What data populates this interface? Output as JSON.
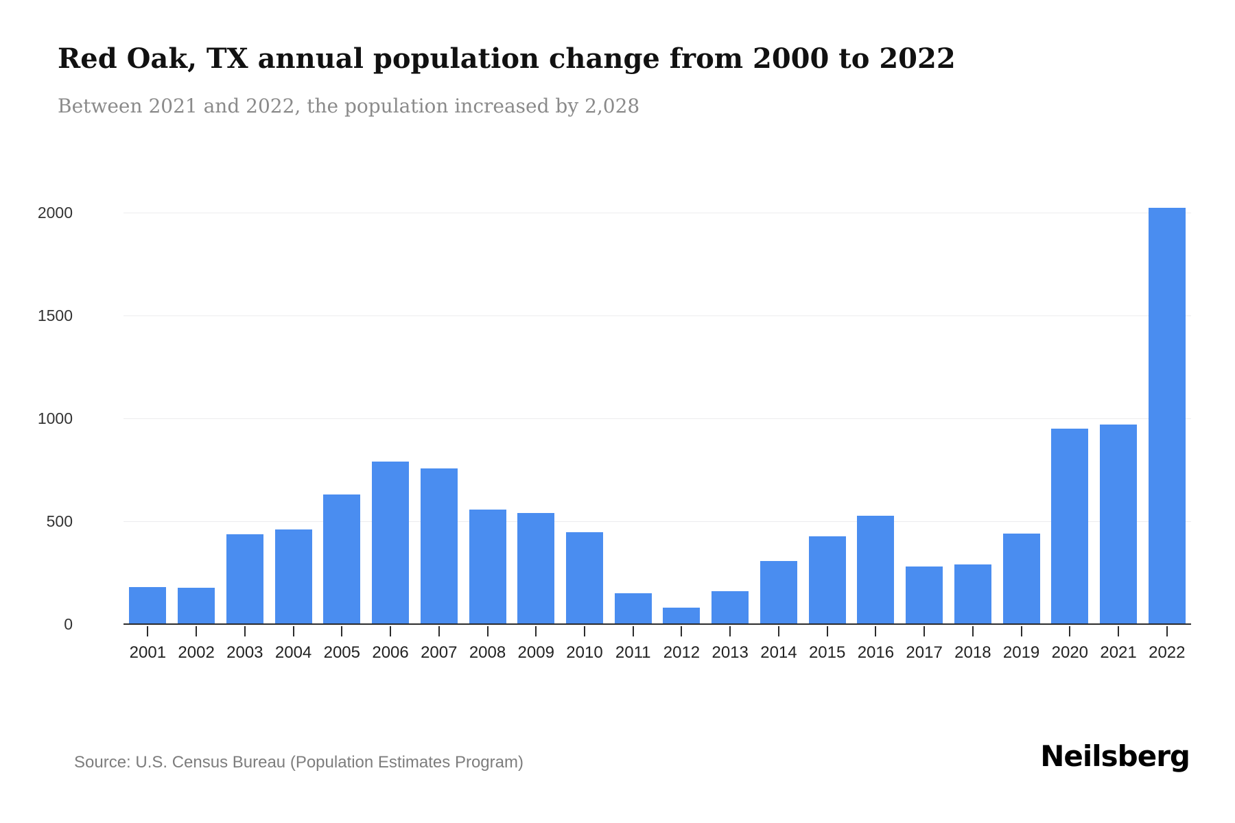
{
  "page": {
    "title": "Red Oak, TX annual population change from 2000 to 2022",
    "subtitle": "Between 2021 and 2022, the population increased by 2,028",
    "source": "Source: U.S. Census Bureau (Population Estimates Program)",
    "brand": "Neilsberg"
  },
  "chart_data": {
    "type": "bar",
    "title": "Red Oak, TX annual population change from 2000 to 2022",
    "subtitle": "Between 2021 and 2022, the population increased by 2,028",
    "categories": [
      "2001",
      "2002",
      "2003",
      "2004",
      "2005",
      "2006",
      "2007",
      "2008",
      "2009",
      "2010",
      "2011",
      "2012",
      "2013",
      "2014",
      "2015",
      "2016",
      "2017",
      "2018",
      "2019",
      "2020",
      "2021",
      "2022"
    ],
    "values": [
      185,
      180,
      440,
      465,
      635,
      795,
      760,
      560,
      545,
      450,
      155,
      85,
      165,
      310,
      430,
      530,
      285,
      295,
      445,
      955,
      975,
      2028
    ],
    "xlabel": "",
    "ylabel": "",
    "ylim": [
      0,
      2170
    ],
    "yticks": [
      0,
      500,
      1000,
      1500,
      2000
    ],
    "grid": true,
    "legend_position": "none",
    "bar_color": "#4a8df0",
    "source": "Source: U.S. Census Bureau (Population Estimates Program)",
    "brand": "Neilsberg"
  }
}
